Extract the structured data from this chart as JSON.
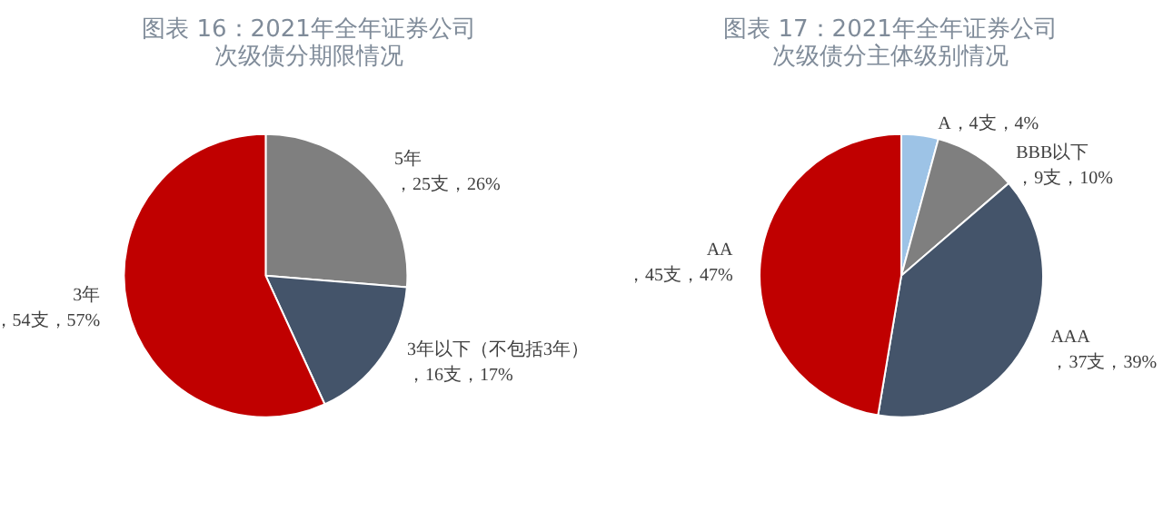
{
  "chart_data": [
    {
      "type": "pie",
      "title": "图表 16：2021年全年证券公司次级债分期限情况",
      "categories": [
        "5年",
        "3年以下（不包括3年）",
        "3年"
      ],
      "values": [
        25,
        16,
        54
      ],
      "value_labels": [
        "，25支，26%",
        "，16支，17%",
        "，54支，57%"
      ],
      "colors": [
        "#7f7f7f",
        "#44546a",
        "#c00000"
      ]
    },
    {
      "type": "pie",
      "title": "图表 17：2021年全年证券公司次级债分主体级别情况",
      "categories": [
        "A",
        "BBB以下",
        "AAA",
        "AA"
      ],
      "values": [
        4,
        9,
        37,
        45
      ],
      "value_labels": [
        "，4支，4%",
        "，9支，10%",
        "，37支，39%",
        "，45支，47%"
      ],
      "colors": [
        "#9dc3e6",
        "#7f7f7f",
        "#44546a",
        "#c00000"
      ]
    }
  ]
}
